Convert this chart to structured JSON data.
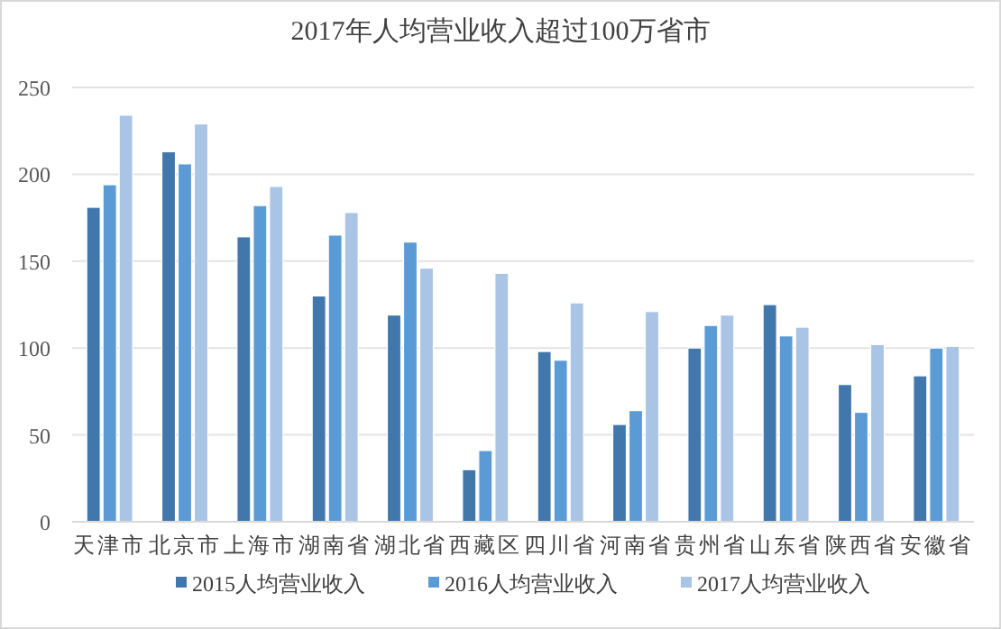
{
  "chart_data": {
    "type": "bar",
    "title": "2017年人均营业收入超过100万省市",
    "categories": [
      "天津市",
      "北京市",
      "上海市",
      "湖南省",
      "湖北省",
      "西藏区",
      "四川省",
      "河南省",
      "贵州省",
      "山东省",
      "陕西省",
      "安徽省"
    ],
    "series": [
      {
        "name": "2015人均营业收入",
        "color": "#4277ab",
        "values": [
          181,
          213,
          164,
          130,
          119,
          30,
          98,
          56,
          100,
          125,
          79,
          84
        ]
      },
      {
        "name": "2016人均营业收入",
        "color": "#5b9bd5",
        "values": [
          194,
          206,
          182,
          165,
          161,
          41,
          93,
          64,
          113,
          107,
          63,
          100
        ]
      },
      {
        "name": "2017人均营业收入",
        "color": "#aac4e6",
        "values": [
          234,
          229,
          193,
          178,
          146,
          143,
          126,
          121,
          119,
          112,
          102,
          101
        ]
      }
    ],
    "ylim": [
      0,
      250
    ],
    "yticks": [
      0,
      50,
      100,
      150,
      200,
      250
    ],
    "grid": "y",
    "legend": "bottom"
  }
}
